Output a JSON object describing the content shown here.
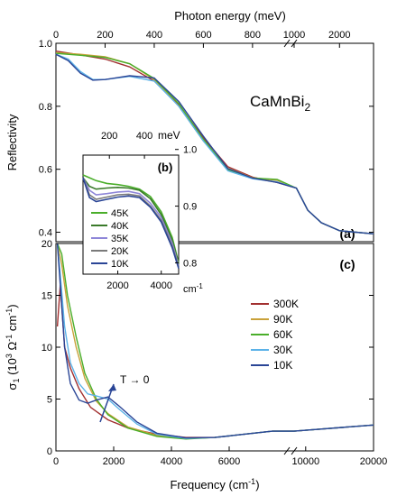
{
  "figure": {
    "title_top": "Photon energy (meV)",
    "bottom_xlabel": "Frequency (cm",
    "bottom_xlabel_sup": "-1",
    "bottom_xlabel_end": ")",
    "material": "CaMnBi",
    "material_sub": "2",
    "inset_unit_top": "meV",
    "inset_unit_bottom": "cm",
    "inset_unit_bottom_sup": "-1",
    "annotation_T": "T → 0"
  },
  "chart_data": [
    {
      "panel_label": "(a)",
      "type": "line",
      "ylabel": "Reflectivity",
      "ylim": [
        0.37,
        1.0
      ],
      "yticks": [
        "0.4",
        "0.6",
        "0.8",
        "1.0"
      ],
      "x_top_ticks": [
        "0",
        "200",
        "400",
        "600",
        "800",
        "1000",
        "2000"
      ],
      "x_segment1_meV": [
        0,
        940
      ],
      "x_segment2_meV": [
        1000,
        2750
      ],
      "series": [
        {
          "name": "300K",
          "color": "#a23030",
          "points": [
            [
              0,
              0.975
            ],
            [
              100,
              0.963
            ],
            [
              200,
              0.95
            ],
            [
              300,
              0.925
            ],
            [
              400,
              0.88
            ],
            [
              500,
              0.805
            ],
            [
              600,
              0.7
            ],
            [
              700,
              0.608
            ],
            [
              800,
              0.575
            ],
            [
              900,
              0.558
            ],
            [
              1050,
              0.54
            ],
            [
              1300,
              0.47
            ],
            [
              1600,
              0.43
            ],
            [
              2000,
              0.405
            ],
            [
              2750,
              0.395
            ]
          ]
        },
        {
          "name": "90K",
          "color": "#c9a13a",
          "points": [
            [
              0,
              0.97
            ],
            [
              100,
              0.965
            ],
            [
              200,
              0.957
            ],
            [
              300,
              0.935
            ],
            [
              400,
              0.885
            ],
            [
              500,
              0.8
            ],
            [
              600,
              0.69
            ],
            [
              700,
              0.603
            ],
            [
              800,
              0.573
            ],
            [
              900,
              0.565
            ],
            [
              1050,
              0.54
            ],
            [
              1300,
              0.47
            ],
            [
              1600,
              0.43
            ],
            [
              2000,
              0.405
            ],
            [
              2750,
              0.395
            ]
          ]
        },
        {
          "name": "60K",
          "color": "#4aae2a",
          "points": [
            [
              0,
              0.968
            ],
            [
              100,
              0.962
            ],
            [
              200,
              0.955
            ],
            [
              300,
              0.935
            ],
            [
              400,
              0.888
            ],
            [
              500,
              0.808
            ],
            [
              600,
              0.695
            ],
            [
              700,
              0.598
            ],
            [
              800,
              0.572
            ],
            [
              900,
              0.568
            ],
            [
              1050,
              0.54
            ],
            [
              1300,
              0.47
            ],
            [
              1600,
              0.43
            ],
            [
              2000,
              0.405
            ],
            [
              2750,
              0.395
            ]
          ]
        },
        {
          "name": "30K",
          "color": "#5bb2e8",
          "points": [
            [
              0,
              0.965
            ],
            [
              50,
              0.95
            ],
            [
              100,
              0.91
            ],
            [
              150,
              0.885
            ],
            [
              200,
              0.885
            ],
            [
              300,
              0.895
            ],
            [
              400,
              0.88
            ],
            [
              500,
              0.8
            ],
            [
              600,
              0.69
            ],
            [
              700,
              0.595
            ],
            [
              800,
              0.57
            ],
            [
              900,
              0.56
            ],
            [
              1050,
              0.54
            ],
            [
              1300,
              0.47
            ],
            [
              1600,
              0.43
            ],
            [
              2000,
              0.405
            ],
            [
              2750,
              0.395
            ]
          ]
        },
        {
          "name": "10K",
          "color": "#2a4596",
          "points": [
            [
              0,
              0.965
            ],
            [
              50,
              0.945
            ],
            [
              100,
              0.905
            ],
            [
              150,
              0.883
            ],
            [
              200,
              0.885
            ],
            [
              300,
              0.897
            ],
            [
              400,
              0.89
            ],
            [
              500,
              0.815
            ],
            [
              600,
              0.705
            ],
            [
              700,
              0.602
            ],
            [
              800,
              0.572
            ],
            [
              900,
              0.558
            ],
            [
              1050,
              0.54
            ],
            [
              1300,
              0.47
            ],
            [
              1600,
              0.43
            ],
            [
              2000,
              0.405
            ],
            [
              2750,
              0.395
            ]
          ]
        }
      ]
    },
    {
      "panel_label": "(b)",
      "type": "line",
      "ylim": [
        0.78,
        0.99
      ],
      "yticks": [
        "0.8",
        "0.9",
        "1.0"
      ],
      "xlim_cm": [
        400,
        4800
      ],
      "xticks_cm": [
        "2000",
        "4000"
      ],
      "xticks_meV": [
        "200",
        "400"
      ],
      "series": [
        {
          "name": "45K",
          "color": "#4aae2a",
          "points": [
            [
              400,
              0.955
            ],
            [
              700,
              0.95
            ],
            [
              1000,
              0.945
            ],
            [
              1500,
              0.94
            ],
            [
              2000,
              0.938
            ],
            [
              2500,
              0.935
            ],
            [
              3000,
              0.93
            ],
            [
              3500,
              0.917
            ],
            [
              4000,
              0.89
            ],
            [
              4500,
              0.845
            ],
            [
              4800,
              0.8
            ]
          ]
        },
        {
          "name": "40K",
          "color": "#3a7a2a",
          "points": [
            [
              400,
              0.95
            ],
            [
              700,
              0.935
            ],
            [
              1000,
              0.93
            ],
            [
              1500,
              0.932
            ],
            [
              2000,
              0.933
            ],
            [
              2500,
              0.932
            ],
            [
              3000,
              0.928
            ],
            [
              3500,
              0.913
            ],
            [
              4000,
              0.885
            ],
            [
              4500,
              0.84
            ],
            [
              4800,
              0.798
            ]
          ]
        },
        {
          "name": "35K",
          "color": "#8e86d8",
          "points": [
            [
              400,
              0.95
            ],
            [
              700,
              0.928
            ],
            [
              1000,
              0.92
            ],
            [
              1500,
              0.922
            ],
            [
              2000,
              0.925
            ],
            [
              2500,
              0.926
            ],
            [
              3000,
              0.922
            ],
            [
              3500,
              0.905
            ],
            [
              4000,
              0.88
            ],
            [
              4500,
              0.835
            ],
            [
              4800,
              0.795
            ]
          ]
        },
        {
          "name": "20K",
          "color": "#7a7a7a",
          "points": [
            [
              400,
              0.95
            ],
            [
              700,
              0.92
            ],
            [
              1000,
              0.912
            ],
            [
              1500,
              0.916
            ],
            [
              2000,
              0.92
            ],
            [
              2500,
              0.921
            ],
            [
              3000,
              0.918
            ],
            [
              3500,
              0.9
            ],
            [
              4000,
              0.875
            ],
            [
              4500,
              0.83
            ],
            [
              4800,
              0.793
            ]
          ]
        },
        {
          "name": "10K",
          "color": "#2a4596",
          "points": [
            [
              400,
              0.95
            ],
            [
              700,
              0.915
            ],
            [
              1000,
              0.908
            ],
            [
              1500,
              0.912
            ],
            [
              2000,
              0.916
            ],
            [
              2500,
              0.918
            ],
            [
              3000,
              0.915
            ],
            [
              3500,
              0.898
            ],
            [
              4000,
              0.872
            ],
            [
              4500,
              0.827
            ],
            [
              4800,
              0.79
            ]
          ]
        }
      ]
    },
    {
      "panel_label": "(c)",
      "type": "line",
      "ylabel_main": "σ",
      "ylabel_sub": "1",
      "ylabel_rest": " (10",
      "ylabel_sup1": "3",
      "ylabel_rest2": " Ω",
      "ylabel_sup2": "-1",
      "ylabel_rest3": " cm",
      "ylabel_sup3": "-1",
      "ylabel_end": ")",
      "ylim": [
        0,
        20
      ],
      "yticks": [
        "0",
        "5",
        "10",
        "15",
        "20"
      ],
      "x_segment1_cm": [
        0,
        8000
      ],
      "x_segment2_cm": [
        8300,
        20000
      ],
      "xticks_cm": [
        "0",
        "2000",
        "4000",
        "6000",
        "10000",
        "20000"
      ],
      "series": [
        {
          "name": "300K",
          "color": "#a23030",
          "points": [
            [
              50,
              12
            ],
            [
              150,
              16
            ],
            [
              300,
              10
            ],
            [
              500,
              8
            ],
            [
              800,
              6
            ],
            [
              1200,
              4.2
            ],
            [
              1800,
              3.0
            ],
            [
              2500,
              2.2
            ],
            [
              3500,
              1.6
            ],
            [
              4500,
              1.3
            ],
            [
              5500,
              1.3
            ],
            [
              6500,
              1.6
            ],
            [
              7500,
              1.9
            ],
            [
              8000,
              1.9
            ],
            [
              8300,
              1.9
            ],
            [
              12000,
              2.1
            ],
            [
              16000,
              2.3
            ],
            [
              20000,
              2.5
            ]
          ]
        },
        {
          "name": "90K",
          "color": "#c9a13a",
          "points": [
            [
              50,
              20
            ],
            [
              200,
              18
            ],
            [
              400,
              14
            ],
            [
              700,
              10
            ],
            [
              1000,
              7
            ],
            [
              1400,
              4.8
            ],
            [
              1800,
              3.6
            ],
            [
              2500,
              2.3
            ],
            [
              3500,
              1.5
            ],
            [
              4500,
              1.2
            ],
            [
              5500,
              1.3
            ],
            [
              6500,
              1.6
            ],
            [
              7500,
              1.9
            ],
            [
              8000,
              1.9
            ],
            [
              8300,
              1.9
            ],
            [
              12000,
              2.1
            ],
            [
              16000,
              2.3
            ],
            [
              20000,
              2.5
            ]
          ]
        },
        {
          "name": "60K",
          "color": "#4aae2a",
          "points": [
            [
              50,
              20
            ],
            [
              200,
              19
            ],
            [
              400,
              15
            ],
            [
              700,
              11
            ],
            [
              1000,
              7.5
            ],
            [
              1400,
              5.0
            ],
            [
              1800,
              3.5
            ],
            [
              2500,
              2.2
            ],
            [
              3500,
              1.4
            ],
            [
              4500,
              1.15
            ],
            [
              5500,
              1.3
            ],
            [
              6500,
              1.6
            ],
            [
              7500,
              1.9
            ],
            [
              8000,
              1.9
            ],
            [
              8300,
              1.9
            ],
            [
              12000,
              2.1
            ],
            [
              16000,
              2.3
            ],
            [
              20000,
              2.5
            ]
          ]
        },
        {
          "name": "30K",
          "color": "#5bb2e8",
          "points": [
            [
              50,
              20
            ],
            [
              150,
              17
            ],
            [
              300,
              12
            ],
            [
              500,
              8.5
            ],
            [
              800,
              6.5
            ],
            [
              1100,
              5.5
            ],
            [
              1400,
              5.3
            ],
            [
              1800,
              5.0
            ],
            [
              2200,
              4.0
            ],
            [
              2800,
              2.6
            ],
            [
              3500,
              1.6
            ],
            [
              4500,
              1.2
            ],
            [
              5500,
              1.3
            ],
            [
              6500,
              1.6
            ],
            [
              7500,
              1.9
            ],
            [
              8000,
              1.9
            ],
            [
              8300,
              1.9
            ],
            [
              12000,
              2.1
            ],
            [
              16000,
              2.3
            ],
            [
              20000,
              2.5
            ]
          ]
        },
        {
          "name": "10K",
          "color": "#2a4596",
          "points": [
            [
              50,
              20
            ],
            [
              150,
              16
            ],
            [
              300,
              10
            ],
            [
              500,
              6.5
            ],
            [
              800,
              4.9
            ],
            [
              1100,
              4.6
            ],
            [
              1400,
              4.9
            ],
            [
              1800,
              5.2
            ],
            [
              2200,
              4.3
            ],
            [
              2800,
              2.8
            ],
            [
              3500,
              1.7
            ],
            [
              4500,
              1.25
            ],
            [
              5500,
              1.3
            ],
            [
              6500,
              1.6
            ],
            [
              7500,
              1.9
            ],
            [
              8000,
              1.9
            ],
            [
              8300,
              1.9
            ],
            [
              12000,
              2.1
            ],
            [
              16000,
              2.3
            ],
            [
              20000,
              2.5
            ]
          ]
        }
      ]
    }
  ]
}
